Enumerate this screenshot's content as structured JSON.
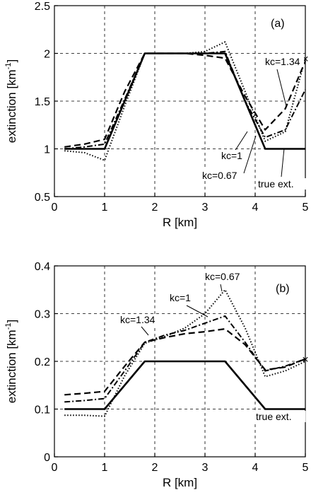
{
  "chart_data": [
    {
      "type": "line",
      "panel": "(a)",
      "xlabel": "R [km]",
      "ylabel": "extinction [km",
      "ylabel_sup": "-1",
      "ylabel_end": "]",
      "xlim": [
        0,
        5
      ],
      "ylim": [
        0.5,
        2.5
      ],
      "xticks": [
        "0",
        "1",
        "2",
        "3",
        "4",
        "5"
      ],
      "yticks": [
        "0.5",
        "1",
        "1.5",
        "2",
        "2.5"
      ],
      "grid": true,
      "series": [
        {
          "name": "true ext.",
          "style": "solid",
          "x": [
            0.2,
            1.0,
            1.8,
            3.4,
            4.2,
            5.0
          ],
          "y": [
            1.0,
            1.0,
            2.0,
            2.0,
            1.0,
            1.0
          ]
        },
        {
          "name": "kc=1.34",
          "style": "dashed",
          "x": [
            0.2,
            0.6,
            1.0,
            1.4,
            1.8,
            2.2,
            2.6,
            3.0,
            3.4,
            3.8,
            4.2,
            4.6,
            5.0
          ],
          "y": [
            1.02,
            1.05,
            1.1,
            1.6,
            2.0,
            2.0,
            2.0,
            1.98,
            1.95,
            1.55,
            1.2,
            1.42,
            1.92
          ]
        },
        {
          "name": "kc=1",
          "style": "dashdot",
          "x": [
            0.2,
            0.6,
            1.0,
            1.4,
            1.8,
            2.2,
            2.6,
            3.0,
            3.4,
            3.8,
            4.2,
            4.6,
            5.0
          ],
          "y": [
            1.0,
            1.02,
            1.05,
            1.52,
            2.0,
            2.0,
            2.0,
            2.0,
            2.02,
            1.5,
            1.12,
            1.2,
            1.62
          ]
        },
        {
          "name": "kc=0.67",
          "style": "dotted",
          "x": [
            0.2,
            0.6,
            1.0,
            1.4,
            1.8,
            2.2,
            2.6,
            3.0,
            3.4,
            3.8,
            4.2,
            4.6,
            5.0
          ],
          "y": [
            0.98,
            0.96,
            0.88,
            1.45,
            2.0,
            2.0,
            2.0,
            2.02,
            2.12,
            1.6,
            1.08,
            1.18,
            1.95
          ]
        }
      ],
      "marker": {
        "symbol": "×",
        "x": 5.0,
        "y": 1.95
      },
      "annotations": [
        {
          "text": "kc=1.34",
          "series": "kc=1.34"
        },
        {
          "text": "kc=1",
          "series": "kc=1"
        },
        {
          "text": "kc=0.67",
          "series": "kc=0.67"
        },
        {
          "text": "true ext.",
          "series": "true ext."
        }
      ]
    },
    {
      "type": "line",
      "panel": "(b)",
      "xlabel": "R [km]",
      "ylabel": "extinction [km",
      "ylabel_sup": "-1",
      "ylabel_end": "]",
      "xlim": [
        0,
        5
      ],
      "ylim": [
        0,
        0.4
      ],
      "xticks": [
        "0",
        "1",
        "2",
        "3",
        "4",
        "5"
      ],
      "yticks": [
        "0",
        "0.1",
        "0.2",
        "0.3",
        "0.4"
      ],
      "grid": true,
      "series": [
        {
          "name": "true ext.",
          "style": "solid",
          "x": [
            0.2,
            1.0,
            1.8,
            3.4,
            4.2,
            5.0
          ],
          "y": [
            0.1,
            0.1,
            0.2,
            0.2,
            0.1,
            0.1
          ]
        },
        {
          "name": "kc=1.34",
          "style": "dashed",
          "x": [
            0.2,
            0.6,
            1.0,
            1.4,
            1.8,
            2.2,
            2.6,
            3.0,
            3.4,
            3.8,
            4.2,
            4.6,
            5.0
          ],
          "y": [
            0.13,
            0.133,
            0.137,
            0.19,
            0.24,
            0.25,
            0.258,
            0.262,
            0.268,
            0.235,
            0.182,
            0.188,
            0.205
          ]
        },
        {
          "name": "kc=1",
          "style": "dashdot",
          "x": [
            0.2,
            0.6,
            1.0,
            1.4,
            1.8,
            2.2,
            2.6,
            3.0,
            3.4,
            3.8,
            4.2,
            4.6,
            5.0
          ],
          "y": [
            0.115,
            0.118,
            0.122,
            0.18,
            0.24,
            0.255,
            0.265,
            0.28,
            0.295,
            0.24,
            0.18,
            0.19,
            0.205
          ]
        },
        {
          "name": "kc=0.67",
          "style": "dotted",
          "x": [
            0.2,
            0.6,
            1.0,
            1.4,
            1.8,
            2.2,
            2.6,
            3.0,
            3.4,
            3.8,
            4.2,
            4.6,
            5.0
          ],
          "y": [
            0.087,
            0.087,
            0.085,
            0.17,
            0.238,
            0.252,
            0.27,
            0.3,
            0.35,
            0.27,
            0.168,
            0.18,
            0.2
          ]
        }
      ],
      "marker": {
        "symbol": "×",
        "x": 5.0,
        "y": 0.205
      },
      "annotations": [
        {
          "text": "kc=0.67",
          "series": "kc=0.67"
        },
        {
          "text": "kc=1",
          "series": "kc=1"
        },
        {
          "text": "kc=1.34",
          "series": "kc=1.34"
        },
        {
          "text": "true ext.",
          "series": "true ext."
        }
      ]
    }
  ]
}
